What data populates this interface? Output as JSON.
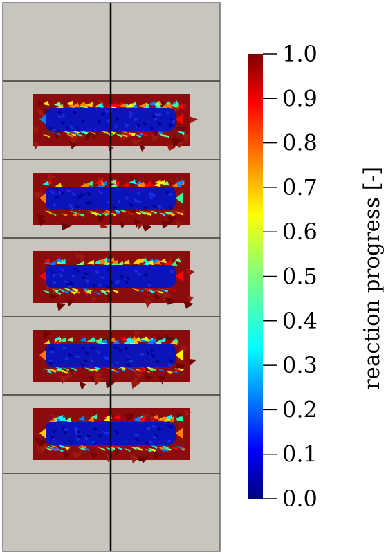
{
  "colorbar": {
    "label": "reaction progress [-]",
    "ticks": [
      "1.0",
      "0.9",
      "0.8",
      "0.7",
      "0.6",
      "0.5",
      "0.4",
      "0.3",
      "0.2",
      "0.1",
      "0.0"
    ],
    "min": 0.0,
    "max": 1.0,
    "colormap": [
      "#00007f",
      "#0000ff",
      "#007fff",
      "#00ffff",
      "#7fff7f",
      "#ffff00",
      "#ff7f00",
      "#ff0000",
      "#7f0000"
    ]
  },
  "mesh": {
    "block_rows": 7,
    "block_cols": 2,
    "reacting_rows": 5,
    "block_color": "#c8c5bf",
    "line_color": "#000000"
  }
}
